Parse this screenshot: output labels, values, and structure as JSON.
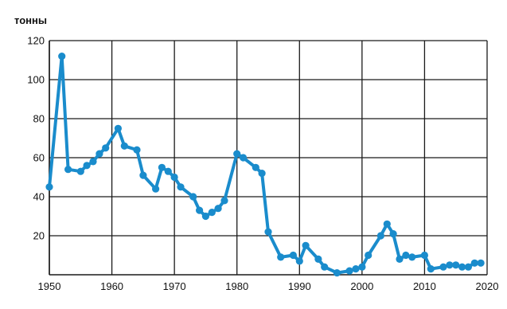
{
  "chart_data": {
    "type": "line",
    "title": "",
    "xlabel": "",
    "ylabel": "тонны",
    "xlim": [
      1950,
      2020
    ],
    "ylim": [
      0,
      120
    ],
    "x_ticks": [
      1950,
      1960,
      1970,
      1980,
      1990,
      2000,
      2010,
      2020
    ],
    "x_tick_labels": [
      "1950",
      "1960",
      "1970",
      "1980",
      "1990",
      "2000",
      "2010",
      "2020"
    ],
    "y_ticks": [
      20,
      40,
      60,
      80,
      100,
      120
    ],
    "y_tick_labels": [
      "20",
      "40",
      "60",
      "80",
      "100",
      "120"
    ],
    "grid": true,
    "colors": {
      "line": "#1a8ccc",
      "grid": "#1a1a1a"
    },
    "series": [
      {
        "x": [
          1950,
          1952,
          1953,
          1955,
          1956,
          1957,
          1958,
          1959,
          1961,
          1962,
          1964,
          1965,
          1967,
          1968,
          1969,
          1970,
          1971,
          1973,
          1974,
          1975,
          1976,
          1977,
          1978,
          1980,
          1981,
          1983,
          1984,
          1985,
          1987,
          1989,
          1990,
          1991,
          1993,
          1994,
          1996,
          1998,
          1999,
          2000,
          2001,
          2003,
          2004,
          2005,
          2006,
          2007,
          2008,
          2010,
          2011,
          2013,
          2014,
          2015,
          2016,
          2017,
          2018,
          2019
        ],
        "y": [
          45,
          112,
          54,
          53,
          56,
          58,
          62,
          65,
          75,
          66,
          64,
          51,
          44,
          55,
          53,
          50,
          45,
          40,
          33,
          30,
          32,
          34,
          38,
          62,
          60,
          55,
          52,
          22,
          9,
          10,
          7,
          15,
          8,
          4,
          1,
          2,
          3,
          4,
          10,
          20,
          26,
          21,
          8,
          10,
          9,
          10,
          3,
          4,
          5,
          5,
          4,
          4,
          6,
          6
        ]
      }
    ]
  }
}
